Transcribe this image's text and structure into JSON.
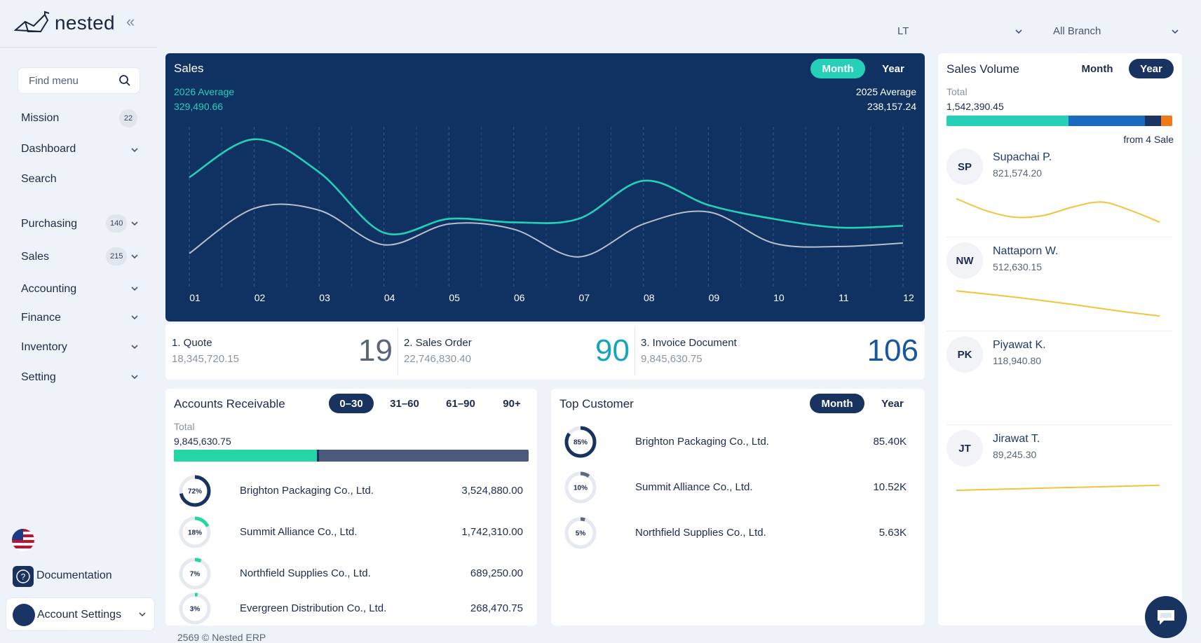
{
  "brand": {
    "name": "nested"
  },
  "topbar": {
    "company": "LT",
    "branch": "All Branch"
  },
  "sidebar": {
    "search_placeholder": "Find menu",
    "items": [
      {
        "label": "Mission",
        "badge": "22"
      },
      {
        "label": "Dashboard"
      },
      {
        "label": "Search"
      },
      {
        "label": "Purchasing",
        "badge": "140"
      },
      {
        "label": "Sales",
        "badge": "215"
      },
      {
        "label": "Accounting"
      },
      {
        "label": "Finance"
      },
      {
        "label": "Inventory"
      },
      {
        "label": "Setting"
      }
    ],
    "documentation": "Documentation",
    "account": "Account Settings",
    "language_icon": "us-flag-icon"
  },
  "sales": {
    "title": "Sales",
    "tabs": {
      "month": "Month",
      "year": "Year",
      "active": "Month"
    },
    "current_label": "2026 Average",
    "current_value": "329,490.66",
    "previous_label": "2025 Average",
    "previous_value": "238,157.24",
    "colors": {
      "bg": "#0f3263",
      "current": "#25d0b6",
      "previous": "#b8bfcc"
    }
  },
  "chart_data": {
    "type": "line",
    "categories": [
      "01",
      "02",
      "03",
      "04",
      "05",
      "06",
      "07",
      "08",
      "09",
      "10",
      "11",
      "12"
    ],
    "series": [
      {
        "name": "2026 Average",
        "values": [
          72,
          94,
          75,
          40,
          48,
          46,
          48,
          70,
          56,
          48,
          43,
          44
        ]
      },
      {
        "name": "2025 Average",
        "values": [
          28,
          54,
          53,
          33,
          45,
          42,
          26,
          45,
          52,
          34,
          32,
          34
        ]
      }
    ],
    "ylim": [
      0,
      100
    ],
    "grid": true
  },
  "stats": [
    {
      "label": "1. Quote",
      "amount": "18,345,720.15",
      "count": "19",
      "color": "#5a6579"
    },
    {
      "label": "2. Sales Order",
      "amount": "22,746,830.40",
      "count": "90",
      "color": "#16a6b8"
    },
    {
      "label": "3. Invoice Document",
      "amount": "9,845,630.75",
      "count": "106",
      "color": "#17579e"
    }
  ],
  "ar": {
    "title": "Accounts Receivable",
    "tabs": [
      "0–30",
      "31–60",
      "61–90",
      "90+"
    ],
    "active_tab": "0–30",
    "total_label": "Total",
    "total_value": "9,845,630.75",
    "progress": 0.41,
    "rows": [
      {
        "pct": "72%",
        "pct_value": 0.72,
        "name": "Brighton Packaging Co., Ltd.",
        "amount": "3,524,880.00"
      },
      {
        "pct": "18%",
        "pct_value": 0.18,
        "name": "Summit Alliance Co., Ltd.",
        "amount": "1,742,310.00"
      },
      {
        "pct": "7%",
        "pct_value": 0.07,
        "name": "Northfield Supplies Co., Ltd.",
        "amount": "689,250.00"
      },
      {
        "pct": "3%",
        "pct_value": 0.03,
        "name": "Evergreen Distribution Co., Ltd.",
        "amount": "268,470.75"
      }
    ]
  },
  "top_customer": {
    "title": "Top Customer",
    "tabs": {
      "month": "Month",
      "year": "Year",
      "active": "Month"
    },
    "rows": [
      {
        "pct": "85%",
        "pct_value": 0.85,
        "name": "Brighton Packaging Co., Ltd.",
        "amount": "85.40K"
      },
      {
        "pct": "10%",
        "pct_value": 0.1,
        "name": "Summit Alliance Co., Ltd.",
        "amount": "10.52K"
      },
      {
        "pct": "5%",
        "pct_value": 0.05,
        "name": "Northfield Supplies Co., Ltd.",
        "amount": "5.63K"
      }
    ]
  },
  "sales_volume": {
    "title": "Sales Volume",
    "tabs": {
      "month": "Month",
      "year": "Year",
      "active": "Year"
    },
    "total_label": "Total",
    "total_value": "1,542,390.45",
    "from_label": "from 4 Sale",
    "bar": [
      {
        "share": 0.54,
        "color": "#25d0b6"
      },
      {
        "share": 0.34,
        "color": "#1a6bbf"
      },
      {
        "share": 0.07,
        "color": "#1a3463"
      },
      {
        "share": 0.05,
        "color": "#f07a1a"
      }
    ],
    "people": [
      {
        "initials": "SP",
        "name": "Supachai P.",
        "amount": "821,574.20",
        "trend": [
          0.2,
          0.55,
          0.75,
          0.7,
          0.45,
          0.3,
          0.55,
          0.9
        ]
      },
      {
        "initials": "NW",
        "name": "Nattaporn W.",
        "amount": "512,630.15",
        "trend": [
          0.15,
          0.28,
          0.42,
          0.58,
          0.75,
          0.9
        ]
      },
      {
        "initials": "PK",
        "name": "Piyawat K.",
        "amount": "118,940.80",
        "trend": []
      },
      {
        "initials": "JT",
        "name": "Jirawat T.",
        "amount": "89,245.30",
        "trend": [
          0.5,
          0.45,
          0.4,
          0.35
        ]
      }
    ]
  },
  "footer": {
    "text": "2569 © Nested ERP"
  }
}
